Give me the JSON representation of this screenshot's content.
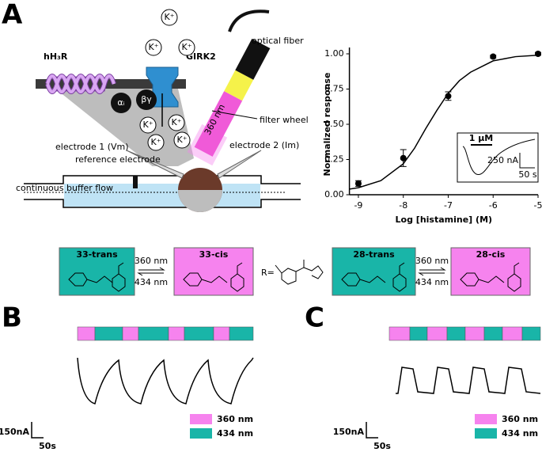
{
  "panel_labels": [
    "A",
    "B",
    "C"
  ],
  "diagram": {
    "receptor": "hH₃R",
    "channel": "GIRK2",
    "g_alpha": "αᵢ",
    "g_beta_gamma": "βγ",
    "ion": "K⁺",
    "optical_fiber": "optical fiber",
    "filter_wheel": "filter wheel",
    "wavelength": "360 nm",
    "electrode1": "electrode 1 (Vm)",
    "electrode2": "electrode 2 (Im)",
    "reference": "reference electrode",
    "flow": "continuous buffer flow"
  },
  "chart_data": {
    "type": "scatter",
    "x_label": "Log [histamine] (M)",
    "y_label": "Normalized response",
    "x": [
      -9,
      -8,
      -7,
      -6,
      -5
    ],
    "values": [
      0.08,
      0.26,
      0.7,
      0.98,
      1.0
    ],
    "errors": [
      0.02,
      0.06,
      0.03,
      0.01,
      0.01
    ],
    "fit": {
      "x": [
        -9.2,
        -9,
        -8.5,
        -8,
        -7.75,
        -7.5,
        -7.25,
        -7,
        -6.75,
        -6.5,
        -6,
        -5.5,
        -5
      ],
      "values": [
        0.04,
        0.05,
        0.1,
        0.22,
        0.33,
        0.47,
        0.6,
        0.72,
        0.81,
        0.87,
        0.95,
        0.98,
        0.99
      ]
    },
    "xlim": [
      -9.2,
      -5
    ],
    "ylim": [
      0,
      1
    ],
    "xticks": [
      -9,
      -8,
      -7,
      -6,
      -5
    ],
    "yticks": [
      {
        "value": 0,
        "label": "0.00"
      },
      {
        "value": 0.25,
        "label": "0.25"
      },
      {
        "value": 0.5,
        "label": "0.50"
      },
      {
        "value": 0.75,
        "label": "0.75"
      },
      {
        "value": 1,
        "label": "1.00"
      }
    ],
    "color": "#000000",
    "inset": {
      "stimulus": "1 µM",
      "scale_current": "250 nA",
      "scale_time": "50 s"
    }
  },
  "compounds": [
    {
      "name": "33-trans",
      "color": "#19b5a8"
    },
    {
      "name": "33-cis",
      "color": "#f683ee"
    },
    {
      "name": "28-trans",
      "color": "#19b5a8"
    },
    {
      "name": "28-cis",
      "color": "#f683ee"
    }
  ],
  "switch": {
    "forward": "360 nm",
    "back": "434 nm"
  },
  "r_label": "R=",
  "legend": [
    {
      "name": "360 nm",
      "color": "#f683ee"
    },
    {
      "name": "434 nm",
      "color": "#19b5a8"
    }
  ],
  "scale_bar": {
    "current": "150nA",
    "time": "50s"
  }
}
